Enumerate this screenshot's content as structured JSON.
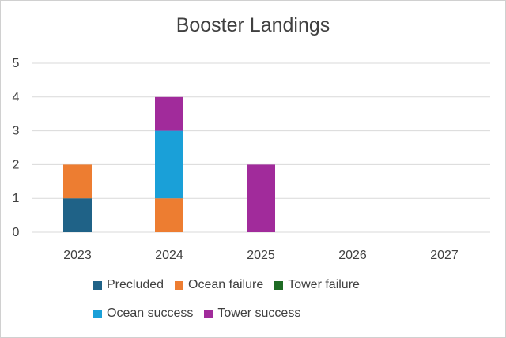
{
  "chart_data": {
    "type": "bar",
    "stacked": true,
    "title": "Booster Landings",
    "xlabel": "",
    "ylabel": "",
    "ylim": [
      0,
      5
    ],
    "yticks": [
      "0",
      "1",
      "2",
      "3",
      "4",
      "5"
    ],
    "categories": [
      "2023",
      "2024",
      "2025",
      "2026",
      "2027"
    ],
    "grid": true,
    "legend_position": "bottom",
    "series": [
      {
        "name": "Precluded",
        "color": "#1f6287",
        "values": [
          1,
          0,
          0,
          0,
          0
        ]
      },
      {
        "name": "Ocean failure",
        "color": "#ed7d31",
        "values": [
          1,
          1,
          0,
          0,
          0
        ]
      },
      {
        "name": "Tower failure",
        "color": "#1e6b24",
        "values": [
          0,
          0,
          0,
          0,
          0
        ]
      },
      {
        "name": "Ocean success",
        "color": "#1aa0d8",
        "values": [
          0,
          2,
          0,
          0,
          0
        ]
      },
      {
        "name": "Tower success",
        "color": "#a12b9b",
        "values": [
          0,
          1,
          2,
          0,
          0
        ]
      }
    ]
  }
}
